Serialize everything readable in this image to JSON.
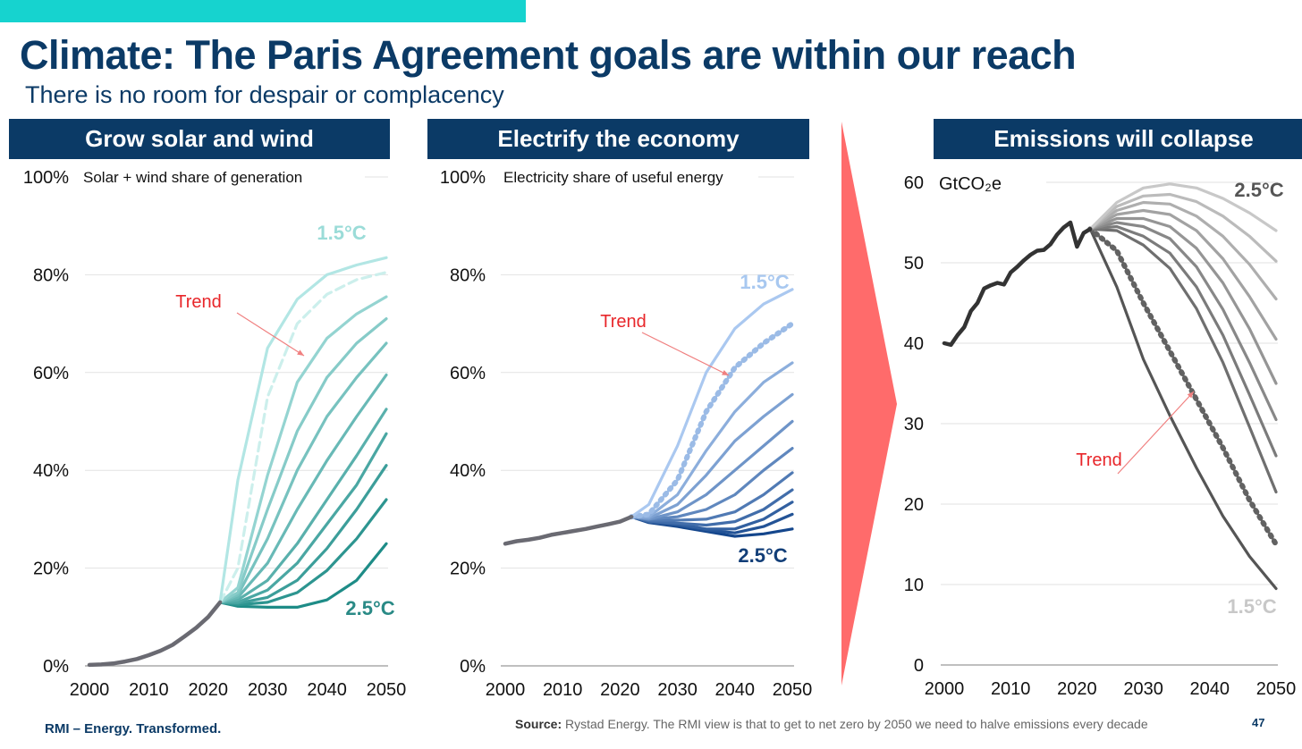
{
  "slide": {
    "title": "Climate: The Paris Agreement goals are within our reach",
    "subtitle": "There is no room for despair or complacency",
    "footer_brand": "RMI – Energy. Transformed.",
    "source_label": "Source:",
    "source_text": " Rystad Energy. The RMI view is that to get to net zero by 2050 we need to halve emissions every decade",
    "page_number": "47",
    "colors": {
      "navy": "#0b3a66",
      "teal_bar": "#16d3cf",
      "arrow_red": "#ff6b6b",
      "trend_red": "#e8262a"
    }
  },
  "panels": [
    {
      "header": "Grow solar and wind"
    },
    {
      "header": "Electrify the economy"
    },
    {
      "header": "Emissions will collapse"
    }
  ],
  "chart_data": [
    {
      "type": "line",
      "title": "Grow solar and wind",
      "ylabel": "Solar + wind share of generation",
      "xlim": [
        2000,
        2050
      ],
      "ylim": [
        0,
        100
      ],
      "x_ticks": [
        "2000",
        "2010",
        "2020",
        "2030",
        "2040",
        "2050"
      ],
      "y_ticks": [
        "0%",
        "20%",
        "40%",
        "60%",
        "80%",
        "100%"
      ],
      "annotations": {
        "high": "1.5°C",
        "low": "2.5°C",
        "trend": "Trend"
      },
      "history": {
        "x": [
          2000,
          2002,
          2004,
          2006,
          2008,
          2010,
          2012,
          2014,
          2016,
          2018,
          2020,
          2022
        ],
        "values": [
          0.2,
          0.3,
          0.5,
          0.9,
          1.4,
          2.2,
          3.1,
          4.3,
          6.0,
          7.8,
          10.0,
          13.0
        ]
      },
      "scenario_x": [
        2022,
        2025,
        2030,
        2035,
        2040,
        2045,
        2050
      ],
      "scenarios": [
        {
          "name": "1.5°C",
          "values": [
            13.0,
            38,
            65,
            75,
            80,
            82,
            83.5
          ]
        },
        {
          "name": "Trend",
          "values": [
            13.0,
            20,
            55,
            70,
            76,
            79,
            80.5
          ],
          "style": "dashed"
        },
        {
          "values": [
            13.0,
            16,
            39,
            58,
            67,
            72,
            75.5
          ]
        },
        {
          "values": [
            13.0,
            15,
            32,
            48,
            59,
            66,
            71
          ]
        },
        {
          "values": [
            13.0,
            14.5,
            26,
            40,
            51,
            59,
            66
          ]
        },
        {
          "values": [
            13.0,
            14,
            21,
            32,
            42,
            51,
            59.5
          ]
        },
        {
          "values": [
            13.0,
            13.5,
            17.5,
            25,
            34,
            43,
            52.5
          ]
        },
        {
          "values": [
            13.0,
            13,
            15.5,
            21,
            29,
            37,
            47.5
          ]
        },
        {
          "values": [
            13.0,
            12.8,
            14,
            17.5,
            24,
            32,
            41
          ]
        },
        {
          "values": [
            13.0,
            12.5,
            13,
            15,
            19.5,
            26,
            34
          ]
        },
        {
          "name": "2.5°C",
          "values": [
            13.0,
            12.2,
            12,
            12,
            13.5,
            17.5,
            25
          ]
        }
      ]
    },
    {
      "type": "line",
      "title": "Electrify the economy",
      "ylabel": "Electricity share of useful energy",
      "xlim": [
        2000,
        2050
      ],
      "ylim": [
        0,
        100
      ],
      "x_ticks": [
        "2000",
        "2010",
        "2020",
        "2030",
        "2040",
        "2050"
      ],
      "y_ticks": [
        "0%",
        "20%",
        "40%",
        "60%",
        "80%",
        "100%"
      ],
      "annotations": {
        "high": "1.5°C",
        "low": "2.5°C",
        "trend": "Trend"
      },
      "history": {
        "x": [
          2000,
          2002,
          2004,
          2006,
          2008,
          2010,
          2012,
          2014,
          2016,
          2018,
          2020,
          2022
        ],
        "values": [
          25,
          25.5,
          25.8,
          26.2,
          26.8,
          27.2,
          27.6,
          28.0,
          28.5,
          29.0,
          29.5,
          30.5
        ]
      },
      "scenario_x": [
        2022,
        2025,
        2030,
        2035,
        2040,
        2045,
        2050
      ],
      "scenarios": [
        {
          "name": "1.5°C",
          "values": [
            30.5,
            33,
            45,
            60,
            69,
            74,
            77
          ]
        },
        {
          "name": "Trend",
          "values": [
            30.5,
            31,
            38,
            52,
            61,
            66,
            70
          ],
          "style": "dotted"
        },
        {
          "values": [
            30.5,
            30.5,
            35,
            44,
            52,
            58,
            62
          ]
        },
        {
          "values": [
            30.5,
            30.2,
            33,
            39,
            46,
            51,
            55.5
          ]
        },
        {
          "values": [
            30.5,
            30,
            31.5,
            35,
            40,
            45,
            50
          ]
        },
        {
          "values": [
            30.5,
            30,
            30.5,
            32,
            35,
            40,
            44.5
          ]
        },
        {
          "values": [
            30.5,
            29.8,
            29.8,
            30,
            31.5,
            35,
            39.5
          ]
        },
        {
          "values": [
            30.5,
            29.6,
            29.2,
            28.8,
            29.5,
            32,
            36
          ]
        },
        {
          "values": [
            30.5,
            29.5,
            29,
            28,
            28,
            30,
            33.5
          ]
        },
        {
          "values": [
            30.5,
            29.4,
            28.8,
            27.8,
            27.2,
            28.5,
            31
          ]
        },
        {
          "name": "2.5°C",
          "values": [
            30.5,
            29.3,
            28.5,
            27.5,
            26.5,
            27,
            28
          ]
        }
      ]
    },
    {
      "type": "line",
      "title": "Emissions will collapse",
      "ylabel": "GtCO₂e",
      "xlim": [
        2000,
        2050
      ],
      "ylim": [
        0,
        60
      ],
      "x_ticks": [
        "2000",
        "2010",
        "2020",
        "2030",
        "2040",
        "2050"
      ],
      "y_ticks": [
        "0",
        "10",
        "20",
        "30",
        "40",
        "50",
        "60"
      ],
      "annotations": {
        "high": "2.5°C",
        "low": "1.5°C",
        "trend": "Trend"
      },
      "history": {
        "x": [
          2000,
          2001,
          2002,
          2003,
          2004,
          2005,
          2006,
          2007,
          2008,
          2009,
          2010,
          2011,
          2012,
          2013,
          2014,
          2015,
          2016,
          2017,
          2018,
          2019,
          2020,
          2021,
          2022
        ],
        "values": [
          40,
          39.8,
          41,
          42,
          44,
          45,
          46.8,
          47.2,
          47.5,
          47.3,
          48.8,
          49.5,
          50.3,
          51,
          51.5,
          51.6,
          52.3,
          53.5,
          54.4,
          55,
          52,
          53.7,
          54.2
        ]
      },
      "scenario_x": [
        2022,
        2026,
        2030,
        2034,
        2038,
        2042,
        2046,
        2050
      ],
      "scenarios": [
        {
          "name": "2.5°C",
          "values": [
            54.2,
            57.5,
            59.3,
            59.8,
            59.3,
            58,
            56.2,
            54
          ]
        },
        {
          "values": [
            54.2,
            57,
            58.3,
            58.5,
            57.6,
            55.8,
            53.3,
            50.2
          ]
        },
        {
          "values": [
            54.2,
            56.5,
            57.5,
            57.3,
            55.8,
            53.3,
            49.8,
            45.5
          ]
        },
        {
          "values": [
            54.2,
            56,
            56.5,
            56,
            54,
            50.5,
            45.8,
            40.5
          ]
        },
        {
          "values": [
            54.2,
            55.5,
            55.5,
            54.5,
            51.8,
            47.5,
            41.8,
            35
          ]
        },
        {
          "values": [
            54.2,
            55,
            54.5,
            53,
            49.5,
            44.2,
            37.6,
            30.5
          ]
        },
        {
          "values": [
            54.2,
            54.5,
            53.3,
            51.2,
            47,
            41,
            33.6,
            26
          ]
        },
        {
          "values": [
            54.2,
            54,
            52.2,
            49.3,
            44.3,
            37.6,
            29.6,
            21.5
          ]
        },
        {
          "name": "Trend",
          "values": [
            54.2,
            51.5,
            45,
            39,
            33,
            27,
            20.5,
            15
          ],
          "style": "dotted"
        },
        {
          "name": "1.5°C",
          "values": [
            54.2,
            47,
            38,
            31,
            24.5,
            18.5,
            13.5,
            9.5
          ]
        }
      ]
    }
  ]
}
